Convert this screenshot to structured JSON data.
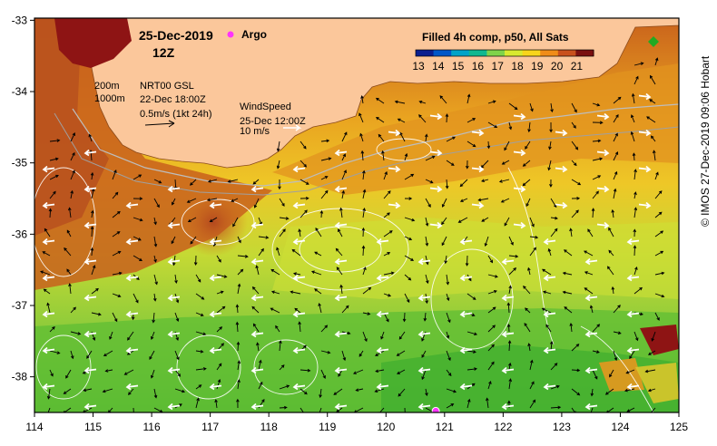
{
  "header": {
    "date": "25-Dec-2019",
    "time": "12Z",
    "argo_label": "Argo"
  },
  "legend": {
    "title": "Filled 4h comp, p50, All Sats",
    "values": [
      "13",
      "14",
      "15",
      "16",
      "17",
      "18",
      "19",
      "20",
      "21"
    ],
    "colors": [
      "#0b1f8f",
      "#0057c8",
      "#00a3c8",
      "#10b890",
      "#7fd34a",
      "#d8e92f",
      "#f7d51a",
      "#f08c18",
      "#c9501c",
      "#7a1010"
    ]
  },
  "depth_labels": {
    "shallow": "200m",
    "deep": "1000m"
  },
  "current_key": {
    "title": "NRT00 GSL",
    "time": "22-Dec 18:00Z",
    "scale": "0.5m/s (1kt 24h)"
  },
  "wind_key": {
    "title": "WindSpeed",
    "time": "25-Dec 12:00Z",
    "scale": "10 m/s"
  },
  "axes": {
    "x_ticks": [
      "114",
      "115",
      "116",
      "117",
      "118",
      "119",
      "120",
      "121",
      "122",
      "123",
      "124",
      "125"
    ],
    "y_ticks": [
      "-33",
      "-34",
      "-35",
      "-36",
      "-37",
      "-38"
    ]
  },
  "credit": "© IMOS 27-Dec-2019 09:06 Hobart",
  "colors": {
    "land": "#fbc79b",
    "coast_warm": "#b8501e",
    "deep_red": "#8e1414",
    "frame": "#000000",
    "argo": "#ff33ff"
  },
  "argo_floats": [
    {
      "lon": 120.85,
      "lat": -38.48
    }
  ]
}
